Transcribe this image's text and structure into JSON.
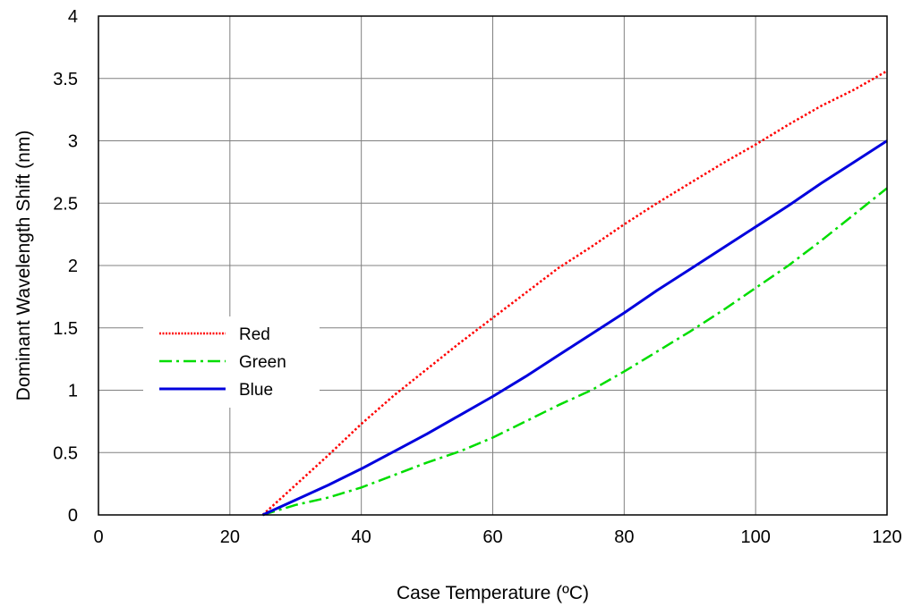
{
  "chart_data": {
    "type": "line",
    "title": "",
    "xlabel": "Case Temperature (ºC)",
    "ylabel": "Dominant Wavelength Shift (nm)",
    "xlim": [
      0,
      120
    ],
    "ylim": [
      0,
      4
    ],
    "x_ticks": [
      "0",
      "20",
      "40",
      "60",
      "80",
      "100",
      "120"
    ],
    "y_ticks": [
      "0",
      "0.5",
      "1",
      "1.5",
      "2",
      "2.5",
      "3",
      "3.5",
      "4"
    ],
    "grid": true,
    "legend_position": "center-left",
    "series": [
      {
        "name": "Red",
        "color": "#ff0000",
        "style": "dotted",
        "points": [
          [
            25,
            0
          ],
          [
            30,
            0.24
          ],
          [
            35,
            0.48
          ],
          [
            40,
            0.73
          ],
          [
            45,
            0.96
          ],
          [
            50,
            1.17
          ],
          [
            55,
            1.38
          ],
          [
            60,
            1.58
          ],
          [
            65,
            1.78
          ],
          [
            70,
            1.98
          ],
          [
            75,
            2.15
          ],
          [
            80,
            2.33
          ],
          [
            85,
            2.5
          ],
          [
            90,
            2.66
          ],
          [
            95,
            2.82
          ],
          [
            100,
            2.97
          ],
          [
            105,
            3.13
          ],
          [
            110,
            3.28
          ],
          [
            115,
            3.41
          ],
          [
            120,
            3.56
          ]
        ]
      },
      {
        "name": "Green",
        "color": "#00dd00",
        "style": "dash-dot",
        "points": [
          [
            25,
            0
          ],
          [
            30,
            0.08
          ],
          [
            35,
            0.14
          ],
          [
            40,
            0.22
          ],
          [
            45,
            0.32
          ],
          [
            50,
            0.42
          ],
          [
            55,
            0.51
          ],
          [
            60,
            0.62
          ],
          [
            65,
            0.75
          ],
          [
            70,
            0.88
          ],
          [
            75,
            1.0
          ],
          [
            80,
            1.15
          ],
          [
            85,
            1.31
          ],
          [
            90,
            1.47
          ],
          [
            95,
            1.64
          ],
          [
            100,
            1.82
          ],
          [
            105,
            2.0
          ],
          [
            110,
            2.2
          ],
          [
            115,
            2.41
          ],
          [
            120,
            2.62
          ]
        ]
      },
      {
        "name": "Blue",
        "color": "#0000dd",
        "style": "solid",
        "points": [
          [
            25,
            0
          ],
          [
            30,
            0.12
          ],
          [
            35,
            0.24
          ],
          [
            40,
            0.37
          ],
          [
            45,
            0.51
          ],
          [
            50,
            0.65
          ],
          [
            55,
            0.8
          ],
          [
            60,
            0.95
          ],
          [
            65,
            1.11
          ],
          [
            70,
            1.28
          ],
          [
            75,
            1.45
          ],
          [
            80,
            1.62
          ],
          [
            85,
            1.8
          ],
          [
            90,
            1.97
          ],
          [
            95,
            2.14
          ],
          [
            100,
            2.31
          ],
          [
            105,
            2.48
          ],
          [
            110,
            2.66
          ],
          [
            115,
            2.83
          ],
          [
            120,
            3.0
          ]
        ]
      }
    ]
  }
}
